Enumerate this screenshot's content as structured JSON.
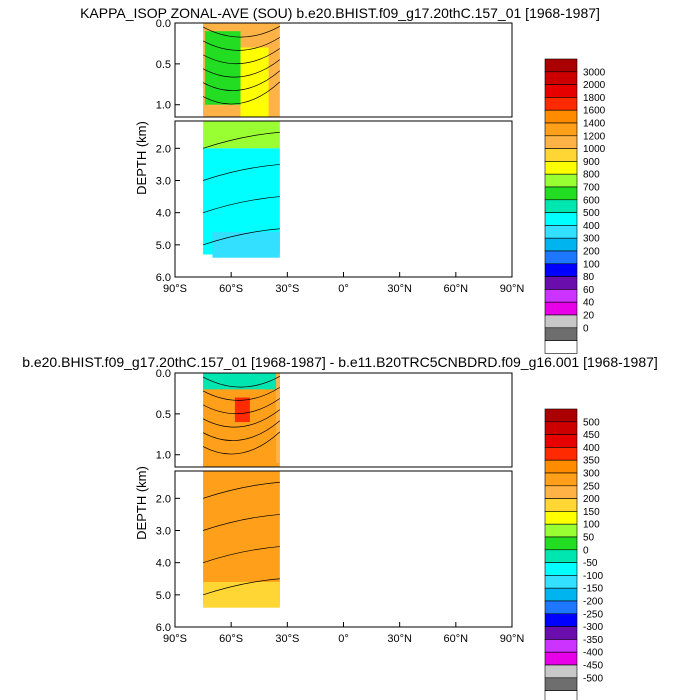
{
  "chart_data": [
    {
      "type": "heatmap",
      "title": "KAPPA_ISOP ZONAL-AVE (SOU) b.e20.BHIST.f09_g17.20thC.157_01 [1968-1987]",
      "ylabel": "DEPTH (km)",
      "xlabel": "",
      "x_ticks": [
        "90°S",
        "60°S",
        "30°S",
        "0°",
        "30°N",
        "60°N",
        "90°N"
      ],
      "upper_y_ticks": [
        "0.0",
        "0.5",
        "1.0"
      ],
      "lower_y_ticks": [
        "2.0",
        "3.0",
        "4.0",
        "5.0",
        "6.0"
      ],
      "xlim": [
        -90,
        90
      ],
      "ylim": [
        0,
        6
      ],
      "data_extent_lat": [
        -75,
        -34
      ],
      "colorbar_labels": [
        "3000",
        "2000",
        "1800",
        "1600",
        "1400",
        "1200",
        "1000",
        "900",
        "800",
        "700",
        "600",
        "500",
        "400",
        "300",
        "200",
        "100",
        "80",
        "60",
        "40",
        "20",
        "0"
      ],
      "colorbar_colors": [
        "#aa0000",
        "#cc0000",
        "#e60000",
        "#ff2a00",
        "#ff8c00",
        "#ff9f1a",
        "#ffb347",
        "#ffd633",
        "#ffff00",
        "#99ff33",
        "#22dd22",
        "#00e6b0",
        "#00ffff",
        "#33e0ff",
        "#00b4f0",
        "#1e78ff",
        "#0000ff",
        "#6a0dad",
        "#cc33ff",
        "#e800e8",
        "#c8c8c8",
        "#6e6e6e",
        "#ffffff"
      ],
      "regions": [
        {
          "name": "surface-1000",
          "depth_km": [
            0.0,
            1.15
          ],
          "lat": [
            -75,
            -34
          ],
          "value": "1000-1200"
        },
        {
          "name": "band-700",
          "depth_km": [
            0.1,
            1.0
          ],
          "lat": [
            -74,
            -55
          ],
          "value": "700-800"
        },
        {
          "name": "band-800",
          "depth_km": [
            0.3,
            1.3
          ],
          "lat": [
            -55,
            -40
          ],
          "value": "800-900"
        },
        {
          "name": "mid-700",
          "depth_km": [
            1.15,
            2.0
          ],
          "lat": [
            -75,
            -34
          ],
          "value": "700-800"
        },
        {
          "name": "deep-500",
          "depth_km": [
            2.0,
            5.3
          ],
          "lat": [
            -75,
            -34
          ],
          "value": "500-600"
        },
        {
          "name": "bottom-400",
          "depth_km": [
            4.6,
            5.4
          ],
          "lat": [
            -70,
            -34
          ],
          "value": "400-500"
        }
      ]
    },
    {
      "type": "heatmap",
      "title": "b.e20.BHIST.f09_g17.20thC.157_01 [1968-1987] - b.e11.B20TRC5CNBDRD.f09_g16.001 [1968-1987]",
      "ylabel": "DEPTH (km)",
      "xlabel": "",
      "x_ticks": [
        "90°S",
        "60°S",
        "30°S",
        "0°",
        "30°N",
        "60°N",
        "90°N"
      ],
      "upper_y_ticks": [
        "0.0",
        "0.5",
        "1.0"
      ],
      "lower_y_ticks": [
        "2.0",
        "3.0",
        "4.0",
        "5.0",
        "6.0"
      ],
      "xlim": [
        -90,
        90
      ],
      "ylim": [
        0,
        6
      ],
      "data_extent_lat": [
        -75,
        -34
      ],
      "colorbar_labels": [
        "500",
        "450",
        "400",
        "350",
        "300",
        "250",
        "200",
        "150",
        "100",
        "50",
        "0",
        "-50",
        "-100",
        "-150",
        "-200",
        "-250",
        "-300",
        "-350",
        "-400",
        "-450",
        "-500"
      ],
      "colorbar_colors": [
        "#aa0000",
        "#cc0000",
        "#e60000",
        "#ff2a00",
        "#ff8c00",
        "#ff9f1a",
        "#ffb347",
        "#ffd633",
        "#ffff00",
        "#99ff33",
        "#22dd22",
        "#00e6b0",
        "#00ffff",
        "#33e0ff",
        "#00b4f0",
        "#1e78ff",
        "#0000ff",
        "#6a0dad",
        "#cc33ff",
        "#e800e8",
        "#c8c8c8",
        "#6e6e6e",
        "#ffffff"
      ],
      "regions": [
        {
          "name": "main-250",
          "depth_km": [
            0.0,
            5.3
          ],
          "lat": [
            -75,
            -34
          ],
          "value": "250-300"
        },
        {
          "name": "surface-mixed",
          "depth_km": [
            0.0,
            0.2
          ],
          "lat": [
            -75,
            -34
          ],
          "value": "-200 to 300"
        },
        {
          "name": "hotspot-350",
          "depth_km": [
            0.3,
            0.6
          ],
          "lat": [
            -58,
            -50
          ],
          "value": "350-400"
        },
        {
          "name": "edge-200",
          "depth_km": [
            0.0,
            1.1
          ],
          "lat": [
            -36,
            -34
          ],
          "value": "200-250"
        },
        {
          "name": "bottom-200",
          "depth_km": [
            4.6,
            5.4
          ],
          "lat": [
            -75,
            -34
          ],
          "value": "200-250"
        }
      ]
    }
  ]
}
